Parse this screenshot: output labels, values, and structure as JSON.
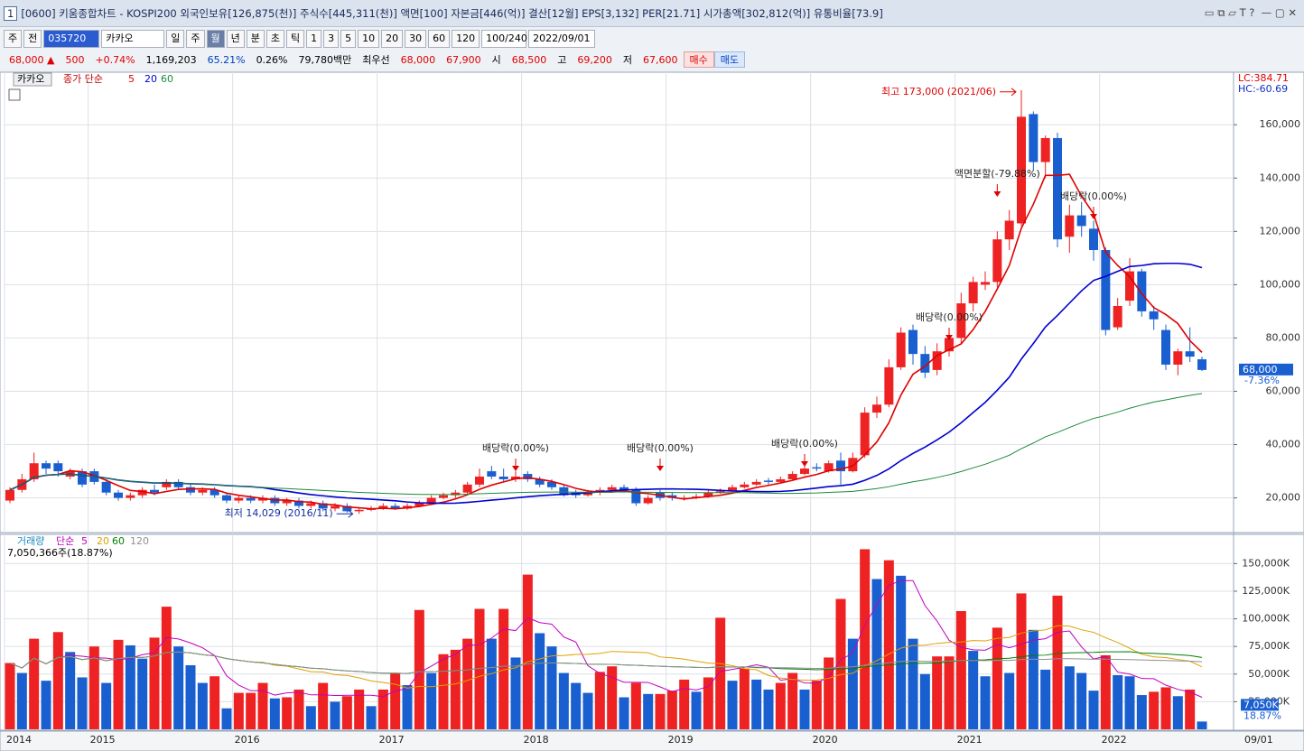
{
  "window": {
    "number": "1",
    "title": "[0600] 키움종합차트 - KOSPI200 외국인보유[126,875(천)] 주식수[445,311(천)] 액면[100] 자본금[446(억)] 결산[12월] EPS[3,132] PER[21.71] 시가총액[302,812(억)] 유통비율[73.9]"
  },
  "toolbar": {
    "items": [
      "주",
      "전",
      "035720",
      "카카오",
      "일",
      "주",
      "월",
      "년",
      "분",
      "초",
      "틱",
      "1",
      "3",
      "5",
      "10",
      "20",
      "30",
      "60",
      "120",
      "100/240",
      "2022/09/01"
    ]
  },
  "quote": {
    "items": [
      {
        "text": "68,000 ▲",
        "color": "#e00000"
      },
      {
        "text": "500",
        "color": "#e00000"
      },
      {
        "text": "+0.74%",
        "color": "#e00000"
      },
      {
        "text": "1,169,203",
        "color": "#000000"
      },
      {
        "text": "65.21%",
        "color": "#0040c0"
      },
      {
        "text": "0.26%",
        "color": "#000000"
      },
      {
        "text": "79,780백만",
        "color": "#000000"
      },
      {
        "text": "최우선",
        "color": "#000000"
      },
      {
        "text": "68,000",
        "color": "#e00000"
      },
      {
        "text": "67,900",
        "color": "#e00000"
      },
      {
        "text": "시",
        "color": "#000000"
      },
      {
        "text": "68,500",
        "color": "#e00000"
      },
      {
        "text": "고",
        "color": "#000000"
      },
      {
        "text": "69,200",
        "color": "#e00000"
      },
      {
        "text": "저",
        "color": "#000000"
      },
      {
        "text": "67,600",
        "color": "#e00000"
      },
      {
        "text": "매수",
        "color": "#e00000"
      },
      {
        "text": "매도",
        "color": "#0040c0"
      }
    ]
  },
  "chart_data": [
    {
      "type": "candlestick",
      "name": "카카오",
      "ma_label": "종가 단순",
      "ma_periods": [
        5,
        20,
        60
      ],
      "ma_colors": [
        "#e00000",
        "#0000d0",
        "#1a8a3a"
      ],
      "up_color": "#ee2222",
      "down_color": "#1a5fd0",
      "grid": true,
      "categories": [
        "2014",
        null,
        null,
        null,
        null,
        null,
        null,
        "2015",
        null,
        null,
        null,
        null,
        null,
        null,
        null,
        null,
        null,
        null,
        null,
        "2016",
        null,
        null,
        null,
        null,
        null,
        null,
        null,
        null,
        null,
        null,
        null,
        "2017",
        null,
        null,
        null,
        null,
        null,
        null,
        null,
        null,
        null,
        null,
        null,
        "2018",
        null,
        null,
        null,
        null,
        null,
        null,
        null,
        null,
        null,
        null,
        null,
        "2019",
        null,
        null,
        null,
        null,
        null,
        null,
        null,
        null,
        null,
        null,
        null,
        "2020",
        null,
        null,
        null,
        null,
        null,
        null,
        null,
        null,
        null,
        null,
        null,
        "2021",
        null,
        null,
        null,
        null,
        null,
        null,
        null,
        null,
        null,
        null,
        null,
        "2022",
        null,
        null,
        null,
        null,
        null,
        null,
        null,
        null
      ],
      "x_end_label": "09/01",
      "open": [
        19000,
        23000,
        27000,
        33000,
        33000,
        28000,
        30000,
        30000,
        26000,
        22000,
        20000,
        21000,
        23000,
        24000,
        26000,
        24000,
        22000,
        23000,
        21000,
        19000,
        20000,
        19000,
        20000,
        18000,
        19000,
        17000,
        18000,
        16000,
        17000,
        15000,
        15500,
        16000,
        17000,
        16000,
        17000,
        18000,
        20000,
        21000,
        22000,
        25000,
        30000,
        28000,
        27000,
        29000,
        27000,
        26000,
        24000,
        22000,
        21000,
        22000,
        23000,
        24000,
        23000,
        18000,
        22000,
        21000,
        19500,
        20000,
        20500,
        22000,
        22500,
        24000,
        25000,
        26500,
        26000,
        27000,
        29000,
        31500,
        30000,
        34000,
        30000,
        36000,
        52000,
        55000,
        69000,
        83000,
        74000,
        68000,
        75000,
        80000,
        93000,
        100000,
        101000,
        117000,
        123000,
        164000,
        146000,
        155000,
        118000,
        126000,
        121000,
        113000,
        84000,
        94000,
        105000,
        90000,
        83000,
        70000,
        75000,
        72000
      ],
      "high": [
        24000,
        29000,
        37000,
        34000,
        34000,
        31000,
        31000,
        31000,
        27000,
        23000,
        22000,
        24000,
        25000,
        27000,
        27000,
        25000,
        24000,
        24000,
        22000,
        21000,
        21000,
        21000,
        21000,
        20000,
        20000,
        19000,
        19000,
        18000,
        18000,
        16500,
        17000,
        18000,
        18000,
        18000,
        19000,
        21000,
        22000,
        23000,
        26000,
        31000,
        32000,
        31000,
        30000,
        30000,
        28000,
        27000,
        25000,
        23000,
        23000,
        24000,
        25000,
        25000,
        24000,
        21000,
        23000,
        22000,
        21000,
        21500,
        23000,
        23500,
        25000,
        26000,
        27000,
        27500,
        28000,
        30000,
        32000,
        33000,
        34000,
        37000,
        37000,
        54000,
        58000,
        72000,
        84000,
        85000,
        77000,
        78000,
        82000,
        97000,
        103000,
        105000,
        120000,
        128000,
        173000,
        165000,
        156000,
        157000,
        130000,
        131000,
        124000,
        114000,
        95000,
        110000,
        106000,
        92000,
        85000,
        76000,
        84000,
        73000
      ],
      "low": [
        18000,
        22000,
        26000,
        29000,
        28000,
        27000,
        24000,
        25000,
        21000,
        19000,
        19000,
        20000,
        21000,
        23000,
        23000,
        21000,
        21000,
        20000,
        18000,
        18000,
        18000,
        18000,
        17000,
        17000,
        16000,
        16000,
        15000,
        15000,
        14500,
        14029,
        15000,
        15500,
        15500,
        15500,
        16500,
        17500,
        19500,
        20000,
        21500,
        24000,
        27000,
        26000,
        26000,
        26000,
        24000,
        23000,
        20500,
        20000,
        20500,
        21000,
        22000,
        22000,
        17000,
        17500,
        19000,
        19000,
        19000,
        19500,
        20000,
        21500,
        22000,
        23500,
        24500,
        25000,
        25500,
        26500,
        28500,
        30000,
        29500,
        25000,
        29500,
        35000,
        50000,
        54000,
        68000,
        70000,
        65000,
        66000,
        73000,
        78000,
        90000,
        98000,
        99000,
        113000,
        122000,
        143000,
        140000,
        114000,
        112000,
        118000,
        109000,
        81000,
        83000,
        92000,
        88000,
        83000,
        68000,
        66000,
        71000,
        67600
      ],
      "close": [
        23000,
        27000,
        33000,
        31000,
        30000,
        30000,
        25000,
        26000,
        22000,
        20000,
        21000,
        23000,
        22000,
        26000,
        24000,
        22000,
        23000,
        21000,
        19000,
        20000,
        19000,
        20000,
        18000,
        19000,
        17000,
        18000,
        16000,
        17000,
        15000,
        15500,
        16000,
        17000,
        16000,
        17000,
        18000,
        20000,
        21000,
        22000,
        25000,
        28000,
        28000,
        27000,
        28000,
        27000,
        25000,
        24000,
        21000,
        21000,
        22000,
        23000,
        24000,
        23000,
        18000,
        20000,
        20000,
        20000,
        20000,
        20500,
        22000,
        22500,
        24000,
        25000,
        26000,
        26000,
        27000,
        29000,
        31000,
        31000,
        33000,
        30000,
        35000,
        52000,
        55000,
        69000,
        82000,
        74000,
        67000,
        75000,
        80000,
        93000,
        101000,
        101000,
        117000,
        124000,
        163000,
        146000,
        155000,
        117000,
        126000,
        122000,
        113000,
        83000,
        92000,
        105000,
        90000,
        87000,
        70000,
        75000,
        73000,
        68000
      ],
      "ylim": [
        7000,
        177000
      ],
      "yticks": [
        {
          "value": 20000,
          "label": "20,000"
        },
        {
          "value": 40000,
          "label": "40,000"
        },
        {
          "value": 60000,
          "label": "60,000"
        },
        {
          "value": 80000,
          "label": "80,000"
        },
        {
          "value": 100000,
          "label": "100,000"
        },
        {
          "value": 120000,
          "label": "120,000"
        },
        {
          "value": 140000,
          "label": "140,000"
        },
        {
          "value": 160000,
          "label": "160,000"
        }
      ],
      "annotations": [
        "배당락(0.00%)",
        "배당락(0.00%)",
        "배당락(0.00%)",
        "배당락(0.00%)",
        "액면분할(-79.88%)",
        "배당락(0.00%)"
      ],
      "high_label": "최고 173,000 (2021/06)",
      "low_label": "최저 14,029 (2016/11)",
      "last_label": "68,000",
      "change_label": "-7.36%",
      "lc_label": "LC:384.71",
      "hc_label": "HC:-60.69"
    },
    {
      "type": "bar",
      "name": "거래량",
      "ma_label": "단순",
      "ma_periods": [
        5,
        20,
        60,
        120
      ],
      "ma_colors": [
        "#c000c0",
        "#e0a000",
        "#008000",
        "#909090"
      ],
      "up_color": "#ee2222",
      "down_color": "#1a5fd0",
      "info_label": "7,050,366주(18.87%)",
      "last_label": "7,050K",
      "ratio_label": "18.87%",
      "values": [
        60000,
        51000,
        82000,
        44000,
        88000,
        70000,
        47000,
        75000,
        42000,
        81000,
        76000,
        64000,
        83000,
        111000,
        75000,
        58000,
        42000,
        48000,
        19000,
        33000,
        33000,
        42000,
        28000,
        29000,
        36000,
        21000,
        42000,
        25000,
        30000,
        36000,
        21000,
        36000,
        51000,
        40000,
        108000,
        51000,
        68000,
        72000,
        82000,
        109000,
        82000,
        109000,
        65000,
        140000,
        87000,
        75000,
        51000,
        42000,
        33000,
        52000,
        57000,
        29000,
        42000,
        32000,
        32000,
        35000,
        45000,
        34000,
        47000,
        101000,
        44000,
        55000,
        45000,
        36000,
        42000,
        51000,
        36000,
        44000,
        65000,
        118000,
        82000,
        163000,
        136000,
        153000,
        139000,
        82000,
        50000,
        66000,
        66000,
        107000,
        71000,
        48000,
        92000,
        51000,
        123000,
        90000,
        54000,
        121000,
        57000,
        51000,
        35000,
        67000,
        49000,
        48000,
        31000,
        34000,
        38000,
        30000,
        36000,
        7050
      ],
      "ylim": [
        0,
        165000
      ],
      "yticks": [
        {
          "value": 25000,
          "label": "25,000K"
        },
        {
          "value": 50000,
          "label": "50,000K"
        },
        {
          "value": 75000,
          "label": "75,000K"
        },
        {
          "value": 100000,
          "label": "100,000K"
        },
        {
          "value": 125000,
          "label": "125,000K"
        },
        {
          "value": 150000,
          "label": "150,000K"
        }
      ]
    }
  ]
}
